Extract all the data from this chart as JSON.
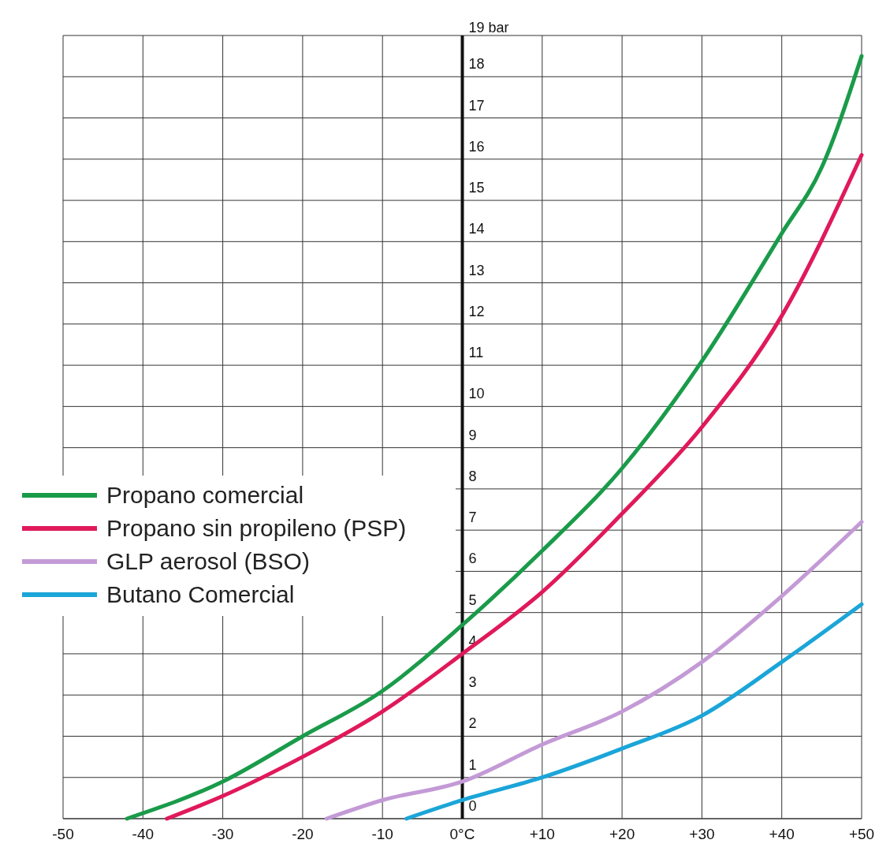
{
  "chart_data": {
    "type": "line",
    "xlim": [
      -50,
      50
    ],
    "ylim": [
      0,
      19
    ],
    "xticks": [
      -50,
      -40,
      -30,
      -20,
      -10,
      {
        "value": 0,
        "label": "0°C"
      },
      {
        "value": 10,
        "label": "+10"
      },
      {
        "value": 20,
        "label": "+20"
      },
      {
        "value": 30,
        "label": "+30"
      },
      {
        "value": 40,
        "label": "+40"
      },
      {
        "value": 50,
        "label": "+50"
      }
    ],
    "yticks": [
      0,
      1,
      2,
      3,
      4,
      5,
      6,
      7,
      8,
      9,
      10,
      11,
      12,
      13,
      14,
      15,
      16,
      17,
      18,
      {
        "value": 19,
        "label": "19 bar"
      }
    ],
    "grid": true,
    "legend": "left",
    "line_style": "solid",
    "marker": "none",
    "series": [
      {
        "name": "Propano comercial",
        "color": "#1a9b4a",
        "x": [
          -42,
          -30,
          -20,
          -10,
          0,
          10,
          20,
          30,
          40,
          45,
          50
        ],
        "values": [
          0,
          0.9,
          2.0,
          3.1,
          4.7,
          6.5,
          8.5,
          11.1,
          14.2,
          15.8,
          18.5
        ]
      },
      {
        "name": "Propano sin propileno (PSP)",
        "color": "#e0195a",
        "x": [
          -37,
          -30,
          -20,
          -10,
          0,
          10,
          20,
          30,
          40,
          50
        ],
        "values": [
          0,
          0.55,
          1.5,
          2.6,
          4.0,
          5.5,
          7.4,
          9.5,
          12.2,
          16.1
        ]
      },
      {
        "name": "GLP aerosol (BSO)",
        "color": "#c39ad6",
        "x": [
          -17,
          -10,
          0,
          10,
          20,
          30,
          40,
          50
        ],
        "values": [
          0,
          0.45,
          0.9,
          1.8,
          2.6,
          3.8,
          5.4,
          7.2
        ]
      },
      {
        "name": "Butano Comercial",
        "color": "#1ba5d8",
        "x": [
          -7,
          0,
          10,
          20,
          30,
          40,
          50
        ],
        "values": [
          0,
          0.45,
          1.0,
          1.7,
          2.5,
          3.8,
          5.2
        ]
      }
    ]
  }
}
